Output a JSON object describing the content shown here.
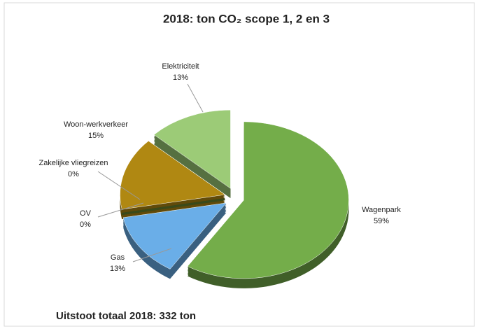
{
  "chart_data": {
    "type": "pie",
    "title": "2018: ton CO₂ scope 1, 2 en 3",
    "categories": [
      "Wagenpark",
      "Gas",
      "OV",
      "Zakelijke vliegreizen",
      "Woon-werkverkeer",
      "Elektriciteit"
    ],
    "values": [
      59,
      13,
      0,
      0,
      15,
      13
    ],
    "value_labels": [
      "59%",
      "13%",
      "0%",
      "0%",
      "15%",
      "13%"
    ],
    "colors": [
      "#74ad4a",
      "#6aaee8",
      "#2f3d1a",
      "#3a4a1a",
      "#b08812",
      "#9ccb77"
    ],
    "footer": "Uitstoot totaal 2018:  332 ton"
  }
}
